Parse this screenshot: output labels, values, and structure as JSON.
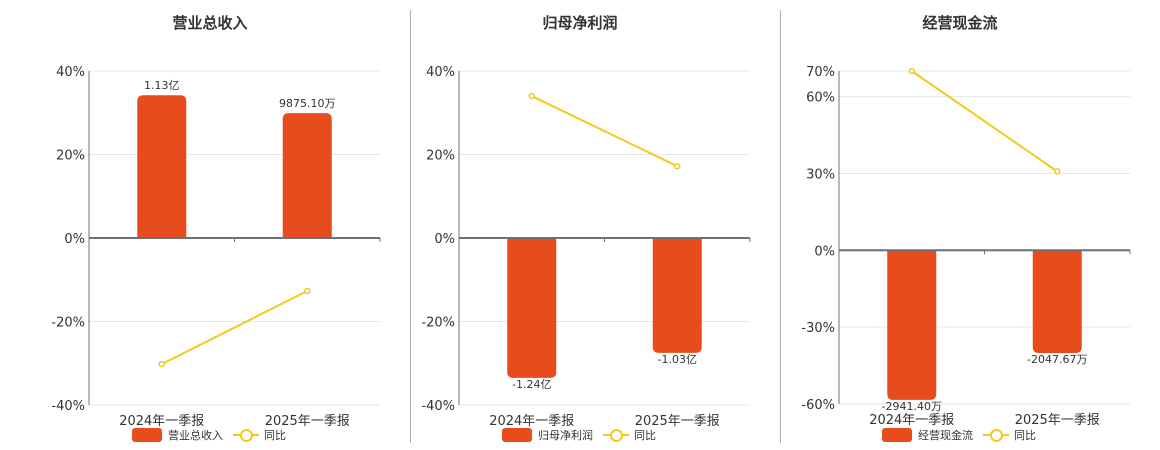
{
  "colors": {
    "bar": "#E84C1C",
    "line": "#F2CA1B",
    "grid": "#E3E8EE",
    "axis": "#6E7079"
  },
  "legend": {
    "line_label": "同比"
  },
  "chart_data": [
    {
      "type": "bar+line",
      "title": "营业总收入",
      "categories": [
        "2024年一季报",
        "2025年一季报"
      ],
      "series": [
        {
          "name": "营业总收入",
          "type": "bar",
          "values": [
            34.2,
            29.9
          ],
          "labels": [
            "1.13亿",
            "9875.10万"
          ]
        },
        {
          "name": "同比",
          "type": "line",
          "values": [
            -30.2,
            -12.7
          ]
        }
      ],
      "yticks": [
        40,
        20,
        0,
        -20,
        -40
      ],
      "ytick_labels": [
        "40%",
        "20%",
        "0%",
        "-20%",
        "-40%"
      ],
      "ylim": [
        -40,
        40
      ],
      "grid": true,
      "legend_position": "bottom"
    },
    {
      "type": "bar+line",
      "title": "归母净利润",
      "categories": [
        "2024年一季报",
        "2025年一季报"
      ],
      "series": [
        {
          "name": "归母净利润",
          "type": "bar",
          "values": [
            -33.5,
            -27.5
          ],
          "labels": [
            "-1.24亿",
            "-1.03亿"
          ]
        },
        {
          "name": "同比",
          "type": "line",
          "values": [
            34.0,
            17.2
          ]
        }
      ],
      "yticks": [
        40,
        20,
        0,
        -20,
        -40
      ],
      "ytick_labels": [
        "40%",
        "20%",
        "0%",
        "-20%",
        "-40%"
      ],
      "ylim": [
        -40,
        40
      ],
      "grid": true,
      "legend_position": "bottom"
    },
    {
      "type": "bar+line",
      "title": "经营现金流",
      "categories": [
        "2024年一季报",
        "2025年一季报"
      ],
      "series": [
        {
          "name": "经营现金流",
          "type": "bar",
          "values": [
            -58.4,
            -40.1
          ],
          "labels": [
            "-2941.40万",
            "-2047.67万"
          ]
        },
        {
          "name": "同比",
          "type": "line",
          "values": [
            70.0,
            30.8
          ]
        }
      ],
      "yticks": [
        70,
        60,
        30,
        0,
        -30,
        -60
      ],
      "ytick_labels": [
        "70%",
        "60%",
        "30%",
        "0%",
        "-30%",
        "-60%"
      ],
      "ylim": [
        -60,
        70
      ],
      "grid": true,
      "legend_position": "bottom"
    }
  ]
}
